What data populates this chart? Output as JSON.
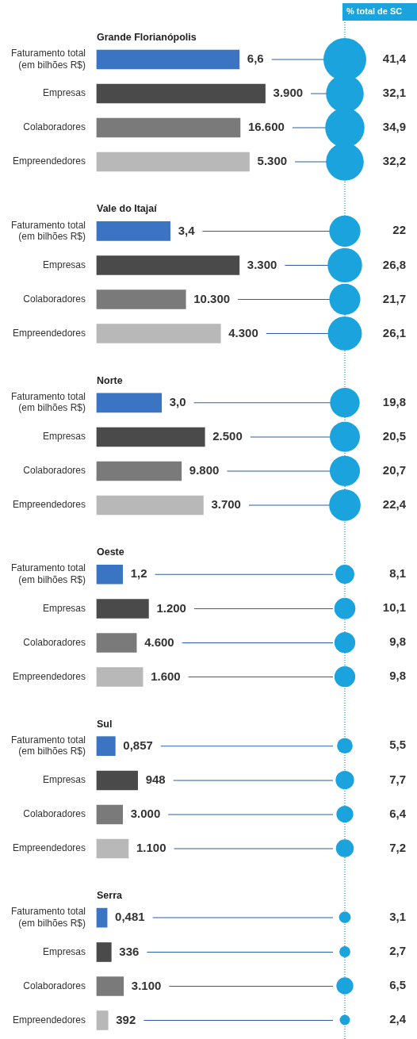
{
  "chart_data": [
    {
      "type": "bar",
      "orientation": "horizontal",
      "annotations": [
        "Grande Florianópolis",
        "Vale do Itajaí",
        "Norte",
        "Oeste",
        "Sul",
        "Serra"
      ],
      "categories": [
        "Faturamento total (em bilhões R$)",
        "Faturamento total (em bilhões R$)",
        "Faturamento total (em bilhões R$)",
        "Faturamento total (em bilhões R$)",
        "Faturamento total (em bilhões R$)",
        "Faturamento total (em bilhões R$)"
      ],
      "values": [
        6.6,
        3.4,
        3.0,
        1.2,
        0.857,
        0.481
      ],
      "value_labels": [
        "6,6",
        "3,4",
        "3,0",
        "1,2",
        "0,857",
        "0,481"
      ],
      "color": "#3a74c2",
      "grid": "y",
      "tick_labels": "y"
    },
    {
      "type": "bar",
      "orientation": "horizontal",
      "categories": [
        "Empresas",
        "Empresas",
        "Empresas",
        "Empresas",
        "Empresas",
        "Empresas"
      ],
      "values": [
        3900,
        3300,
        2500,
        1200,
        948,
        336
      ],
      "value_labels": [
        "3.900",
        "3.300",
        "2.500",
        "1.200",
        "948",
        "336"
      ],
      "color": "#4a4a4a",
      "grid": "y",
      "tick_labels": "y"
    },
    {
      "type": "bar",
      "orientation": "horizontal",
      "categories": [
        "Colaboradores",
        "Colaboradores",
        "Colaboradores",
        "Colaboradores",
        "Colaboradores",
        "Colaboradores"
      ],
      "values": [
        16600,
        10300,
        9800,
        4600,
        3000,
        3100
      ],
      "value_labels": [
        "16.600",
        "10.300",
        "9.800",
        "4.600",
        "3.000",
        "3.100"
      ],
      "color": "#7a7a7a",
      "grid": "y",
      "tick_labels": "y"
    },
    {
      "type": "bar",
      "orientation": "horizontal",
      "categories": [
        "Empreendedores",
        "Empreendedores",
        "Empreendedores",
        "Empreendedores",
        "Empreendedores",
        "Empreendedores"
      ],
      "values": [
        5300,
        4300,
        3700,
        1600,
        1100,
        392
      ],
      "value_labels": [
        "5.300",
        "4.300",
        "3.700",
        "1.600",
        "1.100",
        "392"
      ],
      "color": "#b8b8b8",
      "grid": "y",
      "tick_labels": "y"
    },
    {
      "type": "other",
      "title": "% total de SC",
      "color": "#1aa3dc",
      "values": [
        41.4,
        32.1,
        34.9,
        32.2,
        22,
        26.8,
        21.7,
        26.1,
        19.8,
        20.5,
        20.7,
        22.4,
        8.1,
        10.1,
        9.8,
        9.8,
        5.5,
        7.7,
        6.4,
        7.2,
        3.1,
        2.7,
        6.5,
        2.4
      ],
      "value_labels": [
        "41,4",
        "32,1",
        "34,9",
        "32,2",
        "22",
        "26,8",
        "21,7",
        "26,1",
        "19,8",
        "20,5",
        "20,7",
        "22,4",
        "8,1",
        "10,1",
        "9,8",
        "9,8",
        "5,5",
        "7,7",
        "6,4",
        "7,2",
        "3,1",
        "2,7",
        "6,5",
        "2,4"
      ]
    }
  ]
}
